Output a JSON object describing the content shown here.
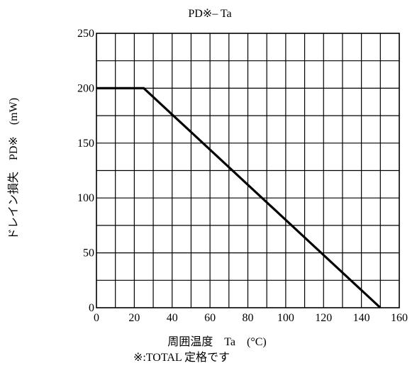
{
  "chart_data": {
    "type": "line",
    "title": "PD※– Ta",
    "xlabel": "周囲温度　Ta　(°C)",
    "ylabel": "ドレイン損失　PD※　(mW)",
    "footnote": "※:TOTAL 定格です",
    "xlim": [
      0,
      160
    ],
    "ylim": [
      0,
      250
    ],
    "x_ticks": [
      0,
      20,
      40,
      60,
      80,
      100,
      120,
      140,
      160
    ],
    "y_ticks": [
      0,
      50,
      100,
      150,
      200,
      250
    ],
    "x_minor_step": 10,
    "y_minor_step": 25,
    "grid": true,
    "series": [
      {
        "x": [
          0,
          25,
          150
        ],
        "y": [
          200,
          200,
          0
        ]
      }
    ],
    "colors": {
      "line": "#000000",
      "grid": "#000000"
    }
  }
}
